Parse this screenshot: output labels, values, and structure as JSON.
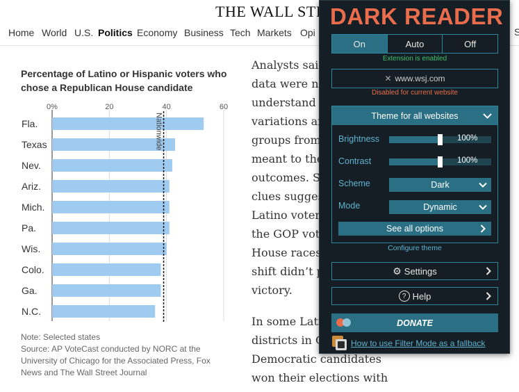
{
  "masthead": "THE WALL STREET",
  "nav": [
    "Home",
    "World",
    "U.S.",
    "Politics",
    "Economy",
    "Business",
    "Tech",
    "Markets",
    "Opi"
  ],
  "nav_active": "Politics",
  "nav_edge": "S",
  "chart_title": "Percentage of Latino or Hispanic voters who chose a Republican House candidate",
  "chart_data": {
    "type": "bar",
    "orientation": "horizontal",
    "title": "Percentage of Latino or Hispanic voters who chose a Republican House candidate",
    "categories": [
      "Fla.",
      "Texas",
      "Nev.",
      "Ariz.",
      "Mich.",
      "Pa.",
      "Wis.",
      "Colo.",
      "Ga.",
      "N.C."
    ],
    "values": [
      53,
      43,
      42,
      41,
      41,
      41,
      40,
      38,
      38,
      36
    ],
    "xlim": [
      0,
      60
    ],
    "xticks": [
      0,
      20,
      40,
      60
    ],
    "xtick_labels": [
      "0%",
      "20",
      "40",
      "60"
    ],
    "reference_line": {
      "value": 39,
      "label": "Nationwide"
    },
    "bar_color": "#9ecbef",
    "grid": true
  },
  "note": "Note: Selected states",
  "source": "Source: AP VoteCast conducted by NORC at the University of Chicago for the Associated Press, Fox News and The Wall Street Journal",
  "article": {
    "p1_lines": [
      "Analysts said",
      "data were ne",
      "understand w",
      "variations ar",
      "groups from",
      "meant to the",
      "outcomes. So",
      "clues sugges",
      "Latino voter",
      "the GOP vote",
      "House races,",
      "shift didn’t p",
      "victory."
    ],
    "p2_lines": [
      "In some Latin",
      "districts in C",
      "Democratic candidates",
      "won their elections with"
    ]
  },
  "dark_reader": {
    "logo": "DARK READER",
    "modes": [
      "On",
      "Auto",
      "Off"
    ],
    "active_mode": "On",
    "extension_status": "Extension is enabled",
    "site": "www.wsj.com",
    "site_status": "Disabled for current website",
    "theme_header": "Theme for all websites",
    "brightness_label": "Brightness",
    "brightness_value": "100%",
    "contrast_label": "Contrast",
    "contrast_value": "100%",
    "scheme_label": "Scheme",
    "scheme_value": "Dark",
    "mode_label": "Mode",
    "mode_value": "Dynamic",
    "see_all": "See all options",
    "configure": "Configure theme",
    "settings": "Settings",
    "help": "Help",
    "donate": "DONATE",
    "fallback": "How to use Filter Mode as a fallback",
    "accent": "#e96c4c",
    "panel_bg": "#141e24",
    "button_bg": "#2a6f84"
  }
}
